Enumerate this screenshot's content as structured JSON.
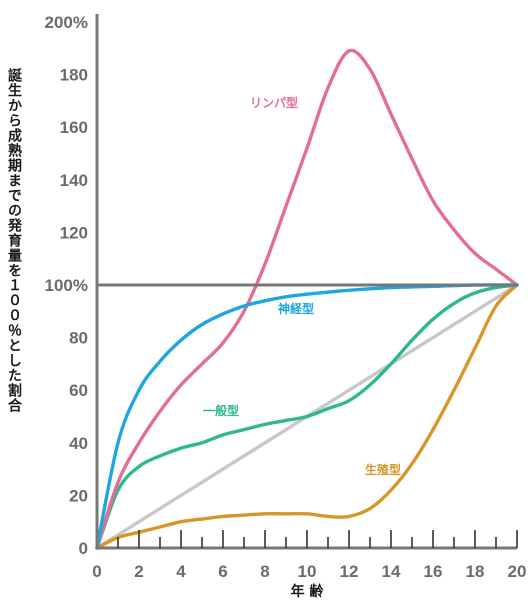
{
  "chart_data": {
    "type": "line",
    "title": "",
    "xlabel": "年 齢",
    "ylabel": "誕生から成熟期までの発育量を１００％とした割合",
    "xlim": [
      0,
      20
    ],
    "ylim": [
      0,
      200
    ],
    "x_ticks": [
      "0",
      "2",
      "4",
      "6",
      "8",
      "10",
      "12",
      "14",
      "16",
      "18",
      "20"
    ],
    "y_ticks": [
      "0",
      "20",
      "40",
      "60",
      "80",
      "100%",
      "120",
      "140",
      "160",
      "180",
      "200%"
    ],
    "reference_line_y": 100,
    "grid": false,
    "series": [
      {
        "name": "リンパ型",
        "color": "#e26f8f",
        "x": [
          0,
          1,
          2,
          3,
          4,
          5,
          6,
          7,
          8,
          9,
          10,
          11,
          12,
          13,
          14,
          15,
          16,
          17,
          18,
          19,
          20
        ],
        "y": [
          0,
          25,
          40,
          52,
          62,
          70,
          78,
          90,
          108,
          130,
          152,
          175,
          189,
          182,
          165,
          148,
          132,
          121,
          112,
          106,
          100
        ]
      },
      {
        "name": "神経型",
        "color": "#1fa6e0",
        "x": [
          0,
          1,
          2,
          3,
          4,
          5,
          6,
          7,
          8,
          9,
          10,
          12,
          14,
          16,
          18,
          20
        ],
        "y": [
          0,
          40,
          60,
          71,
          79,
          85,
          89,
          92,
          94,
          95.5,
          96.5,
          98,
          99,
          99.5,
          100,
          100
        ]
      },
      {
        "name": "一般型",
        "color": "#2db98c",
        "x": [
          0,
          1,
          2,
          3,
          4,
          5,
          6,
          7,
          8,
          9,
          10,
          11,
          12,
          13,
          14,
          15,
          16,
          17,
          18,
          19,
          20
        ],
        "y": [
          0,
          22,
          31,
          35,
          38,
          40,
          43,
          45,
          47,
          48.5,
          50,
          53,
          56,
          62,
          70,
          79,
          87,
          93,
          97,
          99,
          100
        ]
      },
      {
        "name": "生殖型",
        "color": "#d8962a",
        "x": [
          0,
          1,
          2,
          3,
          4,
          5,
          6,
          7,
          8,
          9,
          10,
          11,
          12,
          13,
          14,
          15,
          16,
          17,
          18,
          19,
          20
        ],
        "y": [
          0,
          4,
          6,
          8,
          10,
          11,
          12,
          12.5,
          13,
          13,
          13,
          12,
          12,
          15,
          22,
          32,
          45,
          60,
          76,
          92,
          100
        ]
      },
      {
        "name": "",
        "color": "#c8c8c8",
        "x": [
          0,
          20
        ],
        "y": [
          0,
          100
        ]
      }
    ]
  }
}
